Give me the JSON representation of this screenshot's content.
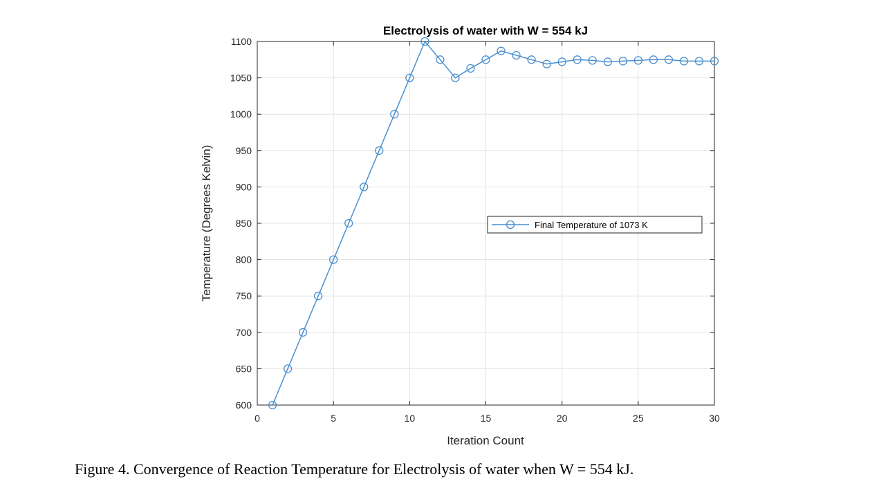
{
  "figure": {
    "caption": "Figure 4. Convergence of Reaction Temperature for Electrolysis of water when W = 554 kJ."
  },
  "chart_data": {
    "type": "line",
    "title": "Electrolysis of water with W = 554 kJ",
    "xlabel": "Iteration Count",
    "ylabel": "Temperature (Degrees Kelvin)",
    "xlim": [
      0,
      30
    ],
    "ylim": [
      600,
      1100
    ],
    "xticks": [
      0,
      5,
      10,
      15,
      20,
      25,
      30
    ],
    "yticks": [
      600,
      650,
      700,
      750,
      800,
      850,
      900,
      950,
      1000,
      1050,
      1100
    ],
    "grid": true,
    "legend_position": "right",
    "marker": "circle",
    "series_color": "#4a8fd0",
    "series": [
      {
        "name": "Final Temperature of 1073 K",
        "x": [
          1,
          2,
          3,
          4,
          5,
          6,
          7,
          8,
          9,
          10,
          11,
          12,
          13,
          14,
          15,
          16,
          17,
          18,
          19,
          20,
          21,
          22,
          23,
          24,
          25,
          26,
          27,
          28,
          29,
          30
        ],
        "y": [
          600,
          650,
          700,
          750,
          800,
          850,
          900,
          950,
          1000,
          1050,
          1100,
          1075,
          1050,
          1063,
          1075,
          1087,
          1081,
          1075,
          1069,
          1072,
          1075,
          1074,
          1072,
          1073,
          1074,
          1075,
          1075,
          1073,
          1073,
          1073
        ]
      }
    ]
  }
}
